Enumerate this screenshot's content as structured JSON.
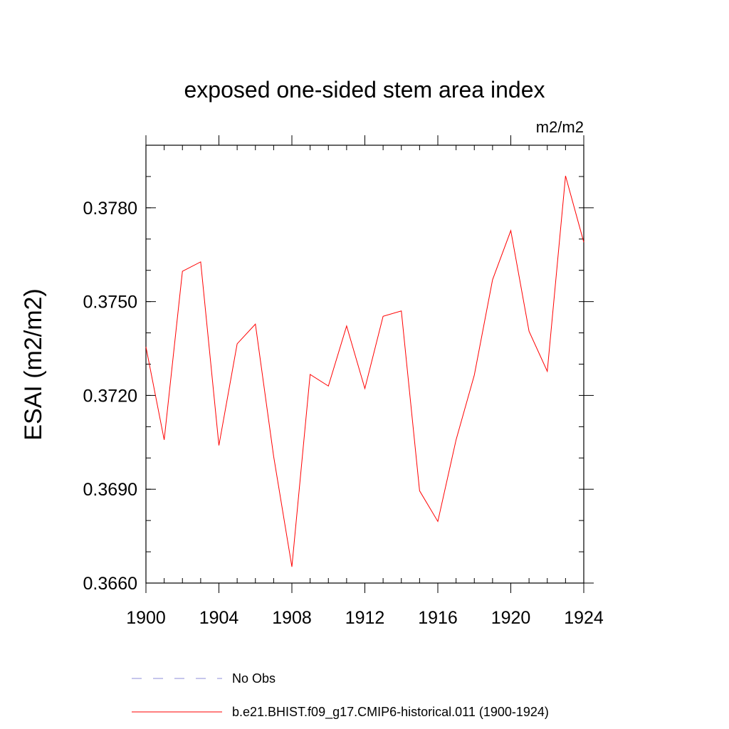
{
  "chart_data": {
    "type": "line",
    "title": "exposed one-sided stem area index",
    "units_label": "m2/m2",
    "ylabel": "ESAI  (m2/m2)",
    "xlabel": "",
    "xlim": [
      1900,
      1924
    ],
    "ylim": [
      0.366,
      0.38
    ],
    "x_ticks": [
      1900,
      1904,
      1908,
      1912,
      1916,
      1920,
      1924
    ],
    "x_tick_labels": [
      "1900",
      "1904",
      "1908",
      "1912",
      "1916",
      "1920",
      "1924"
    ],
    "y_ticks": [
      0.366,
      0.369,
      0.372,
      0.375,
      0.378
    ],
    "y_tick_labels": [
      "0.3660",
      "0.3690",
      "0.3720",
      "0.3750",
      "0.3780"
    ],
    "grid": false,
    "legend_placement": "bottom",
    "series": [
      {
        "name": "No Obs",
        "color": "#8c8cd9",
        "style": "dashed",
        "x": [],
        "values": []
      },
      {
        "name": "b.e21.BHIST.f09_g17.CMIP6-historical.011 (1900-1924)",
        "color": "#ff0000",
        "style": "solid",
        "x": [
          1900,
          1901,
          1902,
          1903,
          1904,
          1905,
          1906,
          1907,
          1908,
          1909,
          1910,
          1911,
          1912,
          1913,
          1914,
          1915,
          1916,
          1917,
          1918,
          1919,
          1920,
          1921,
          1922,
          1923,
          1924
        ],
        "values": [
          0.37355,
          0.37058,
          0.37597,
          0.37627,
          0.3704,
          0.37365,
          0.37428,
          0.37005,
          0.36652,
          0.37267,
          0.3723,
          0.37422,
          0.37222,
          0.37453,
          0.3747,
          0.36895,
          0.36797,
          0.37058,
          0.37265,
          0.3757,
          0.37727,
          0.37405,
          0.37277,
          0.37902,
          0.3769
        ]
      }
    ]
  }
}
